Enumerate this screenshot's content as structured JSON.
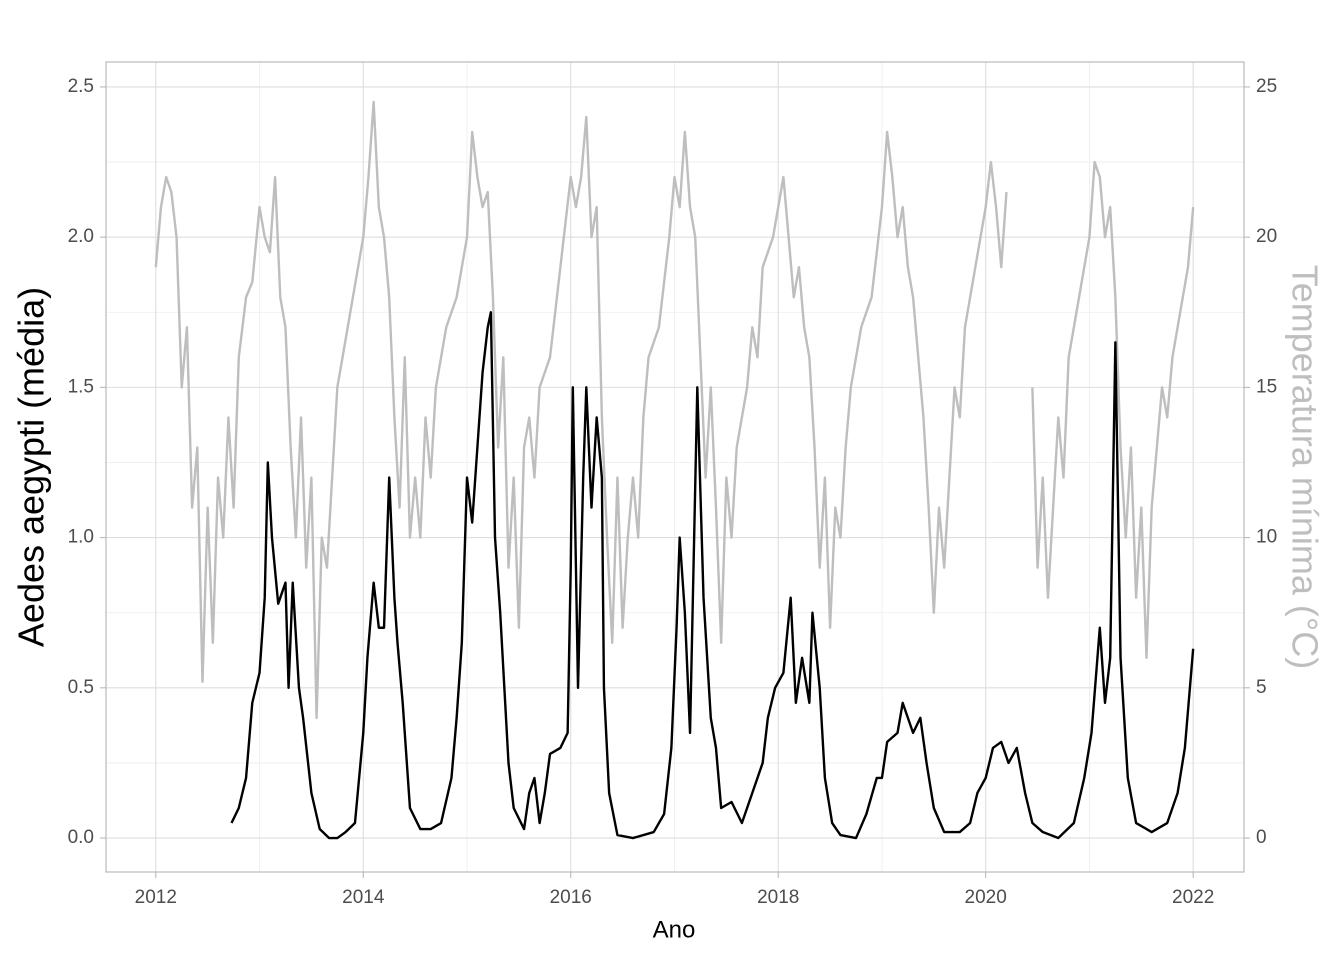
{
  "chart_data": {
    "type": "line",
    "xlabel": "Ano",
    "ylabel": "Aedes aegypti (média)",
    "y2label": "Temperatura mínima (°C)",
    "xlim": [
      2011.52,
      2022.49
    ],
    "xticks": [
      2012,
      2014,
      2016,
      2018,
      2020,
      2022
    ],
    "xminor_ticks": [
      2013,
      2015,
      2017,
      2019,
      2021
    ],
    "ylim": [
      -0.113,
      2.583
    ],
    "yticks": [
      {
        "value": 0,
        "label": "0.0"
      },
      {
        "value": 0.5,
        "label": "0.5"
      },
      {
        "value": 1,
        "label": "1.0"
      },
      {
        "value": 1.5,
        "label": "1.5"
      },
      {
        "value": 2,
        "label": "2.0"
      },
      {
        "value": 2.5,
        "label": "2.5"
      }
    ],
    "yminor_ticks": [
      0.25,
      0.75,
      1.25,
      1.75,
      2.25
    ],
    "y2lim": [
      -1.13,
      25.83
    ],
    "y2ticks": [
      0,
      5,
      10,
      15,
      20,
      25
    ],
    "grid": true,
    "series": [
      {
        "name": "Temperatura mínima",
        "color": "#bebebe",
        "axis": "y2",
        "x": [
          2012.0,
          2012.05,
          2012.1,
          2012.15,
          2012.2,
          2012.25,
          2012.3,
          2012.35,
          2012.4,
          2012.45,
          2012.5,
          2012.55,
          2012.6,
          2012.65,
          2012.7,
          2012.75,
          2012.8,
          2012.87,
          2012.93,
          2013.0,
          2013.05,
          2013.1,
          2013.15,
          2013.2,
          2013.25,
          2013.3,
          2013.35,
          2013.4,
          2013.45,
          2013.5,
          2013.55,
          2013.6,
          2013.65,
          2013.7,
          2013.75,
          2013.85,
          2013.95,
          2014.0,
          2014.05,
          2014.1,
          2014.15,
          2014.2,
          2014.25,
          2014.3,
          2014.35,
          2014.4,
          2014.45,
          2014.5,
          2014.55,
          2014.6,
          2014.65,
          2014.7,
          2014.8,
          2014.9,
          2015.0,
          2015.05,
          2015.1,
          2015.15,
          2015.2,
          2015.25,
          2015.3,
          2015.35,
          2015.4,
          2015.45,
          2015.5,
          2015.55,
          2015.6,
          2015.65,
          2015.7,
          2015.8,
          2015.9,
          2016.0,
          2016.05,
          2016.1,
          2016.15,
          2016.2,
          2016.25,
          2016.3,
          2016.35,
          2016.4,
          2016.45,
          2016.5,
          2016.55,
          2016.6,
          2016.65,
          2016.7,
          2016.75,
          2016.85,
          2016.95,
          2017.0,
          2017.05,
          2017.1,
          2017.15,
          2017.2,
          2017.25,
          2017.3,
          2017.35,
          2017.4,
          2017.45,
          2017.5,
          2017.55,
          2017.6,
          2017.7,
          2017.75,
          2017.8,
          2017.85,
          2017.95,
          2018.0,
          2018.05,
          2018.1,
          2018.15,
          2018.2,
          2018.25,
          2018.3,
          2018.35,
          2018.4,
          2018.45,
          2018.5,
          2018.55,
          2018.6,
          2018.65,
          2018.7,
          2018.8,
          2018.9,
          2019.0,
          2019.05,
          2019.1,
          2019.15,
          2019.2,
          2019.25,
          2019.3,
          2019.35,
          2019.4,
          2019.45,
          2019.5,
          2019.55,
          2019.6,
          2019.65,
          2019.7,
          2019.75,
          2019.8,
          2019.9,
          2020.0,
          2020.05,
          2020.1,
          2020.15,
          2020.2,
          2020.3,
          2020.45,
          2020.5,
          2020.55,
          2020.6,
          2020.65,
          2020.7,
          2020.75,
          2020.8,
          2020.9,
          2021.0,
          2021.05,
          2021.1,
          2021.15,
          2021.2,
          2021.25,
          2021.3,
          2021.35,
          2021.4,
          2021.45,
          2021.5,
          2021.55,
          2021.6,
          2021.65,
          2021.7,
          2021.75,
          2021.8,
          2021.9,
          2021.95,
          2022.0
        ],
        "values": [
          19,
          21,
          22,
          21.5,
          20,
          15,
          17,
          11,
          13,
          5.2,
          11,
          6.5,
          12,
          10,
          14,
          11,
          16,
          18,
          18.5,
          21,
          20,
          19.5,
          22,
          18,
          17,
          13,
          10,
          14,
          9,
          12,
          4,
          10,
          9,
          12,
          15,
          17,
          19,
          20,
          22,
          24.5,
          21,
          20,
          18,
          14,
          11,
          16,
          10,
          12,
          10,
          14,
          12,
          15,
          17,
          18,
          20,
          23.5,
          22,
          21,
          21.5,
          18,
          13,
          16,
          9,
          12,
          7,
          13,
          14,
          12,
          15,
          16,
          19,
          22,
          21,
          22,
          24,
          20,
          21,
          14,
          10,
          6.5,
          12,
          7,
          10,
          12,
          10,
          14,
          16,
          17,
          20,
          22,
          21,
          23.5,
          21,
          20,
          16,
          12,
          15,
          11,
          6.5,
          12,
          10,
          13,
          15,
          17,
          16,
          19,
          20,
          21,
          22,
          20,
          18,
          19,
          17,
          16,
          13,
          9,
          12,
          7,
          11,
          10,
          13,
          15,
          17,
          18,
          21,
          23.5,
          22,
          20,
          21,
          19,
          18,
          16,
          14,
          11,
          7.5,
          11,
          9,
          12,
          15,
          14,
          17,
          19,
          21,
          22.5,
          21,
          19,
          21.5,
          null,
          15,
          9,
          12,
          8,
          11,
          14,
          12,
          16,
          18,
          20,
          22.5,
          22,
          20,
          21,
          18,
          13,
          10,
          13,
          8,
          11,
          6,
          11,
          13,
          15,
          14,
          16,
          18,
          19,
          21
        ]
      },
      {
        "name": "Aedes aegypti",
        "color": "#000000",
        "axis": "y",
        "x": [
          2012.73,
          2012.8,
          2012.87,
          2012.93,
          2013.0,
          2013.05,
          2013.08,
          2013.12,
          2013.18,
          2013.25,
          2013.28,
          2013.32,
          2013.38,
          2013.42,
          2013.5,
          2013.58,
          2013.67,
          2013.75,
          2013.83,
          2013.92,
          2014.0,
          2014.04,
          2014.1,
          2014.15,
          2014.2,
          2014.25,
          2014.3,
          2014.33,
          2014.38,
          2014.45,
          2014.55,
          2014.65,
          2014.75,
          2014.85,
          2014.9,
          2014.95,
          2015.0,
          2015.05,
          2015.1,
          2015.15,
          2015.2,
          2015.23,
          2015.27,
          2015.32,
          2015.36,
          2015.4,
          2015.45,
          2015.55,
          2015.6,
          2015.65,
          2015.7,
          2015.75,
          2015.8,
          2015.9,
          2015.97,
          2016.0,
          2016.02,
          2016.07,
          2016.12,
          2016.15,
          2016.2,
          2016.25,
          2016.3,
          2016.32,
          2016.37,
          2016.45,
          2016.6,
          2016.8,
          2016.9,
          2016.97,
          2017.02,
          2017.05,
          2017.1,
          2017.15,
          2017.22,
          2017.28,
          2017.35,
          2017.4,
          2017.45,
          2017.55,
          2017.65,
          2017.75,
          2017.85,
          2017.9,
          2017.97,
          2018.05,
          2018.12,
          2018.17,
          2018.23,
          2018.3,
          2018.33,
          2018.4,
          2018.45,
          2018.52,
          2018.6,
          2018.75,
          2018.85,
          2018.95,
          2019.0,
          2019.05,
          2019.15,
          2019.2,
          2019.3,
          2019.37,
          2019.43,
          2019.5,
          2019.6,
          2019.75,
          2019.85,
          2019.92,
          2020.0,
          2020.07,
          2020.15,
          2020.22,
          2020.3,
          2020.38,
          2020.45,
          2020.55,
          2020.7,
          2020.85,
          2020.95,
          2021.02,
          2021.1,
          2021.15,
          2021.2,
          2021.25,
          2021.3,
          2021.37,
          2021.45,
          2021.6,
          2021.75,
          2021.85,
          2021.92,
          2022.0
        ],
        "values": [
          0.05,
          0.1,
          0.2,
          0.45,
          0.55,
          0.8,
          1.25,
          1.0,
          0.78,
          0.85,
          0.5,
          0.85,
          0.5,
          0.4,
          0.15,
          0.03,
          0.0,
          0.0,
          0.02,
          0.05,
          0.35,
          0.6,
          0.85,
          0.7,
          0.7,
          1.2,
          0.8,
          0.65,
          0.45,
          0.1,
          0.03,
          0.03,
          0.05,
          0.2,
          0.4,
          0.65,
          1.2,
          1.05,
          1.3,
          1.55,
          1.7,
          1.75,
          1.0,
          0.75,
          0.5,
          0.25,
          0.1,
          0.03,
          0.15,
          0.2,
          0.05,
          0.15,
          0.28,
          0.3,
          0.35,
          0.9,
          1.5,
          0.5,
          1.2,
          1.5,
          1.1,
          1.4,
          1.2,
          0.5,
          0.15,
          0.01,
          0.0,
          0.02,
          0.08,
          0.3,
          0.7,
          1.0,
          0.75,
          0.35,
          1.5,
          0.8,
          0.4,
          0.3,
          0.1,
          0.12,
          0.05,
          0.15,
          0.25,
          0.4,
          0.5,
          0.55,
          0.8,
          0.45,
          0.6,
          0.45,
          0.75,
          0.5,
          0.2,
          0.05,
          0.01,
          0.0,
          0.08,
          0.2,
          0.2,
          0.32,
          0.35,
          0.45,
          0.35,
          0.4,
          0.25,
          0.1,
          0.02,
          0.02,
          0.05,
          0.15,
          0.2,
          0.3,
          0.32,
          0.25,
          0.3,
          0.15,
          0.05,
          0.02,
          0.0,
          0.05,
          0.2,
          0.35,
          0.7,
          0.45,
          0.6,
          1.65,
          0.6,
          0.2,
          0.05,
          0.02,
          0.05,
          0.15,
          0.3,
          0.63
        ]
      }
    ]
  }
}
